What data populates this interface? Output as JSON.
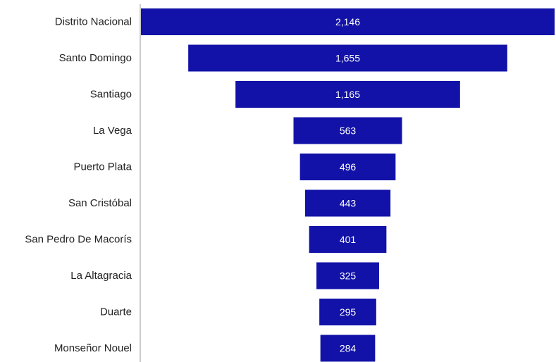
{
  "chart_data": {
    "type": "bar",
    "orientation": "horizontal",
    "style": "funnel",
    "categories": [
      "Distrito Nacional",
      "Santo Domingo",
      "Santiago",
      "La Vega",
      "Puerto Plata",
      "San Cristóbal",
      "San Pedro De Macorís",
      "La Altagracia",
      "Duarte",
      "Monseñor Nouel"
    ],
    "values": [
      2146,
      1655,
      1165,
      563,
      496,
      443,
      401,
      325,
      295,
      284
    ],
    "value_labels": [
      "2,146",
      "1,655",
      "1,165",
      "563",
      "496",
      "443",
      "401",
      "325",
      "295",
      "284"
    ],
    "title": "",
    "xlabel": "",
    "ylabel": "",
    "grid": false,
    "legend": "none",
    "colors": {
      "bar": "#1212a8",
      "axis": "#9a9a9a",
      "label_text": "#222222",
      "value_text": "#ffffff"
    }
  }
}
